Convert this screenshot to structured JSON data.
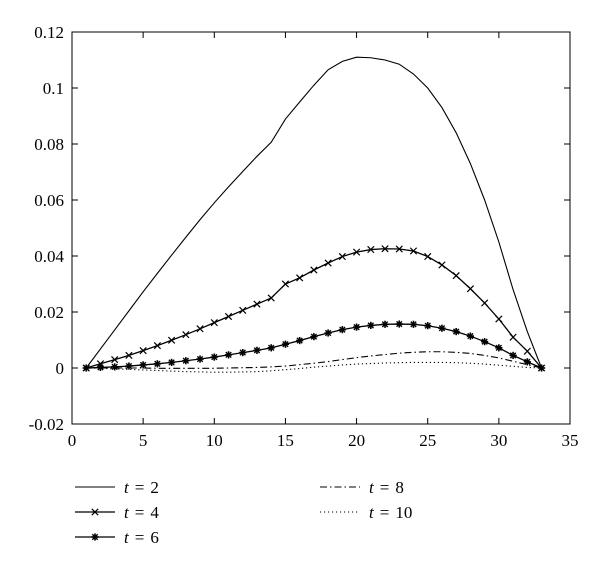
{
  "chart_data": {
    "type": "line",
    "title": "",
    "xlabel": "",
    "ylabel": "",
    "xlim": [
      0,
      35
    ],
    "ylim": [
      -0.02,
      0.12
    ],
    "xticks": [
      0,
      5,
      10,
      15,
      20,
      25,
      30,
      35
    ],
    "yticks": [
      -0.02,
      0,
      0.02,
      0.04,
      0.06,
      0.08,
      0.1,
      0.12
    ],
    "xtick_labels": [
      "0",
      "5",
      "10",
      "15",
      "20",
      "25",
      "30",
      "35"
    ],
    "ytick_labels": [
      "-0.02",
      "0",
      "0.02",
      "0.04",
      "0.06",
      "0.08",
      "0.1",
      "0.12"
    ],
    "grid": false,
    "legend_position": "bottom",
    "x": [
      1,
      2,
      3,
      4,
      5,
      6,
      7,
      8,
      9,
      10,
      11,
      12,
      13,
      14,
      15,
      16,
      17,
      18,
      19,
      20,
      21,
      22,
      23,
      24,
      25,
      26,
      27,
      28,
      29,
      30,
      31,
      32,
      33
    ],
    "series": [
      {
        "var": "t",
        "eq": "=",
        "val": "2",
        "style": "solid",
        "marker": "none",
        "values": [
          0,
          0.0068,
          0.0136,
          0.0204,
          0.0272,
          0.0338,
          0.0403,
          0.0467,
          0.053,
          0.059,
          0.0647,
          0.0702,
          0.0756,
          0.0806,
          0.0889,
          0.095,
          0.101,
          0.1065,
          0.1095,
          0.111,
          0.1108,
          0.11,
          0.1085,
          0.105,
          0.1,
          0.093,
          0.084,
          0.073,
          0.06,
          0.045,
          0.028,
          0.013,
          0
        ]
      },
      {
        "var": "t",
        "eq": "=",
        "val": "4",
        "style": "solid",
        "marker": "x",
        "values": [
          0,
          0.0015,
          0.003,
          0.0045,
          0.0062,
          0.008,
          0.0099,
          0.0119,
          0.014,
          0.0162,
          0.0184,
          0.0206,
          0.0228,
          0.025,
          0.03,
          0.0322,
          0.035,
          0.0375,
          0.0398,
          0.0414,
          0.0423,
          0.0426,
          0.0425,
          0.0418,
          0.0398,
          0.0368,
          0.033,
          0.0283,
          0.0232,
          0.0175,
          0.011,
          0.006,
          0
        ]
      },
      {
        "var": "t",
        "eq": "=",
        "val": "6",
        "style": "solid",
        "marker": "star",
        "values": [
          0,
          0.0002,
          0.0004,
          0.0007,
          0.0011,
          0.0015,
          0.002,
          0.0026,
          0.0032,
          0.0039,
          0.0047,
          0.0055,
          0.0063,
          0.0072,
          0.0085,
          0.0098,
          0.0112,
          0.0125,
          0.0137,
          0.0146,
          0.0152,
          0.0156,
          0.0157,
          0.0156,
          0.0151,
          0.0142,
          0.013,
          0.0114,
          0.0094,
          0.0072,
          0.0045,
          0.0022,
          0
        ]
      },
      {
        "var": "t",
        "eq": "=",
        "val": "8",
        "style": "dashdot",
        "marker": "none",
        "values": [
          0,
          0,
          0,
          0,
          0,
          -0.0001,
          -0.0001,
          -0.0001,
          -0.0001,
          -0.0001,
          0,
          0.0001,
          0.0002,
          0.0004,
          0.0007,
          0.0012,
          0.0017,
          0.0023,
          0.003,
          0.0037,
          0.0043,
          0.0048,
          0.0053,
          0.0056,
          0.0058,
          0.0058,
          0.0056,
          0.0052,
          0.0045,
          0.0036,
          0.0024,
          0.0012,
          0
        ]
      },
      {
        "var": "t",
        "eq": "=",
        "val": "10",
        "style": "dotted",
        "marker": "none",
        "values": [
          0,
          -0.0001,
          -0.0003,
          -0.0005,
          -0.0007,
          -0.0009,
          -0.0011,
          -0.0013,
          -0.0014,
          -0.0015,
          -0.0015,
          -0.0014,
          -0.0013,
          -0.001,
          -0.0006,
          -0.0002,
          0.0003,
          0.0007,
          0.0011,
          0.0014,
          0.0016,
          0.0018,
          0.0019,
          0.002,
          0.002,
          0.002,
          0.0019,
          0.0017,
          0.0014,
          0.001,
          0.0006,
          0.0002,
          0
        ]
      }
    ]
  }
}
